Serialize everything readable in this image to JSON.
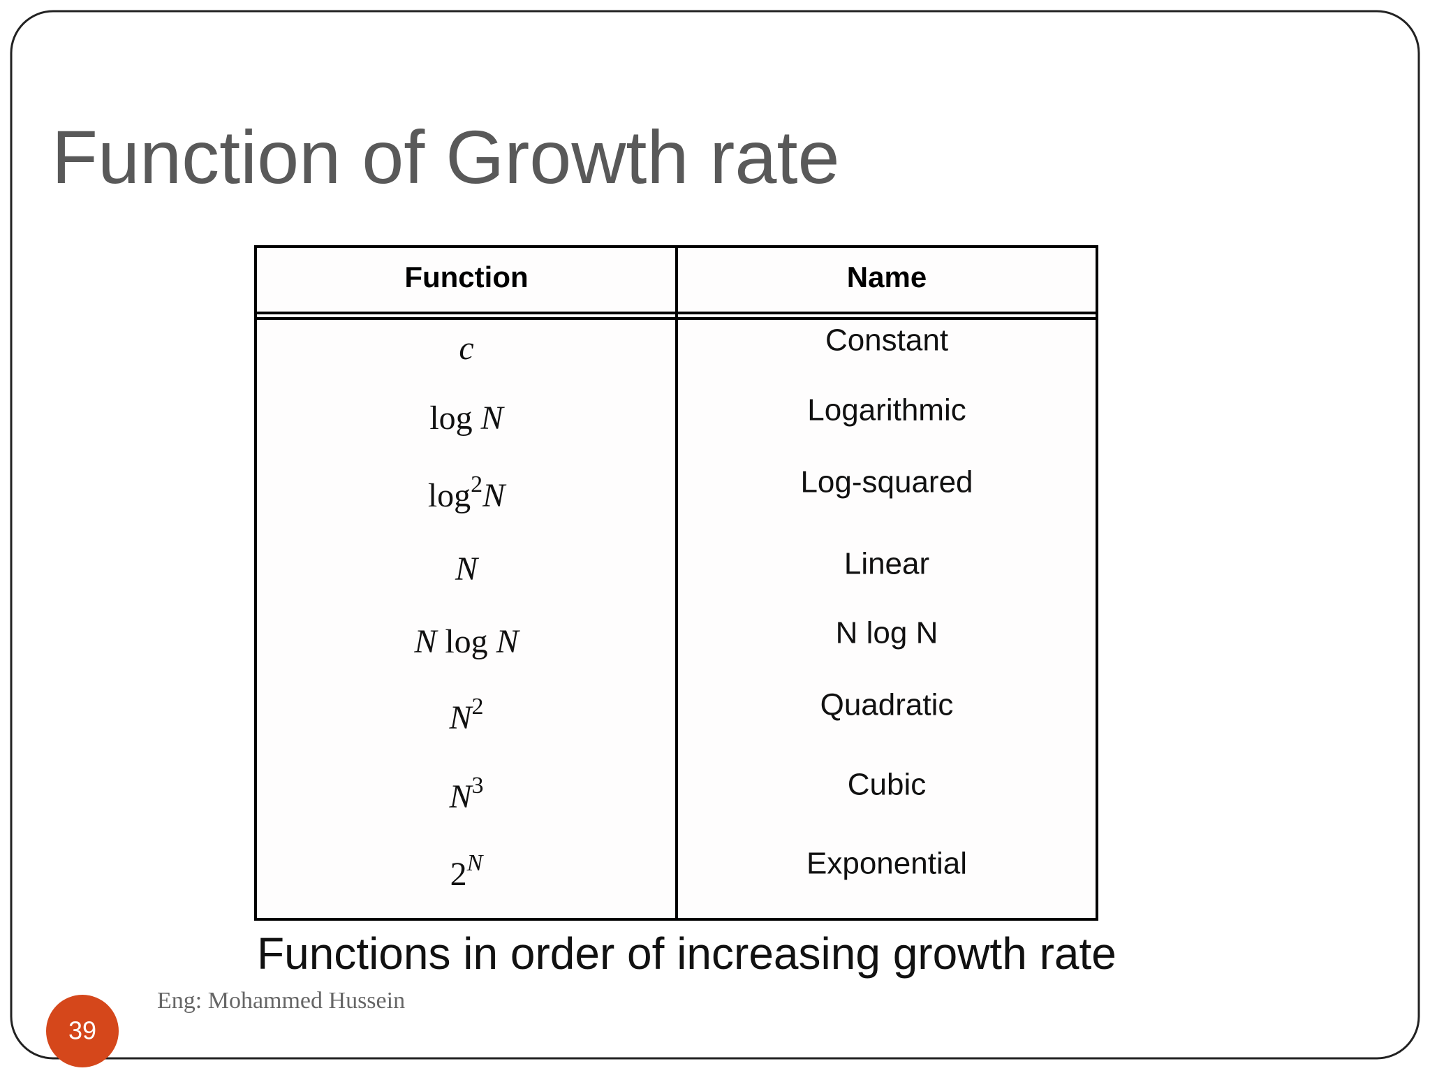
{
  "title": "Function of Growth rate",
  "table": {
    "header": [
      "Function",
      "Name"
    ],
    "rows": [
      {
        "function": [
          {
            "text": "c",
            "style": "italic"
          }
        ],
        "name": "Constant"
      },
      {
        "function": [
          {
            "text": "log ",
            "style": "roman"
          },
          {
            "text": "N",
            "style": "italic"
          }
        ],
        "name": "Logarithmic"
      },
      {
        "function": [
          {
            "text": "log",
            "style": "roman"
          },
          {
            "text": "2",
            "style": "sup"
          },
          {
            "text": "N",
            "style": "italic"
          }
        ],
        "name": "Log-squared"
      },
      {
        "function": [
          {
            "text": "N",
            "style": "italic"
          }
        ],
        "name": "Linear"
      },
      {
        "function": [
          {
            "text": "N",
            "style": "italic"
          },
          {
            "text": " log ",
            "style": "roman"
          },
          {
            "text": "N",
            "style": "italic"
          }
        ],
        "name": "N log N"
      },
      {
        "function": [
          {
            "text": "N",
            "style": "italic"
          },
          {
            "text": "2",
            "style": "sup"
          }
        ],
        "name": "Quadratic"
      },
      {
        "function": [
          {
            "text": "N",
            "style": "italic"
          },
          {
            "text": "3",
            "style": "sup"
          }
        ],
        "name": "Cubic"
      },
      {
        "function": [
          {
            "text": "2",
            "style": "roman"
          },
          {
            "text": "N",
            "style": "sup-italic"
          }
        ],
        "name": "Exponential"
      }
    ],
    "caption": "Functions in order of increasing growth rate"
  },
  "footer": {
    "author": "Eng: Mohammed Hussein",
    "page": "39"
  }
}
